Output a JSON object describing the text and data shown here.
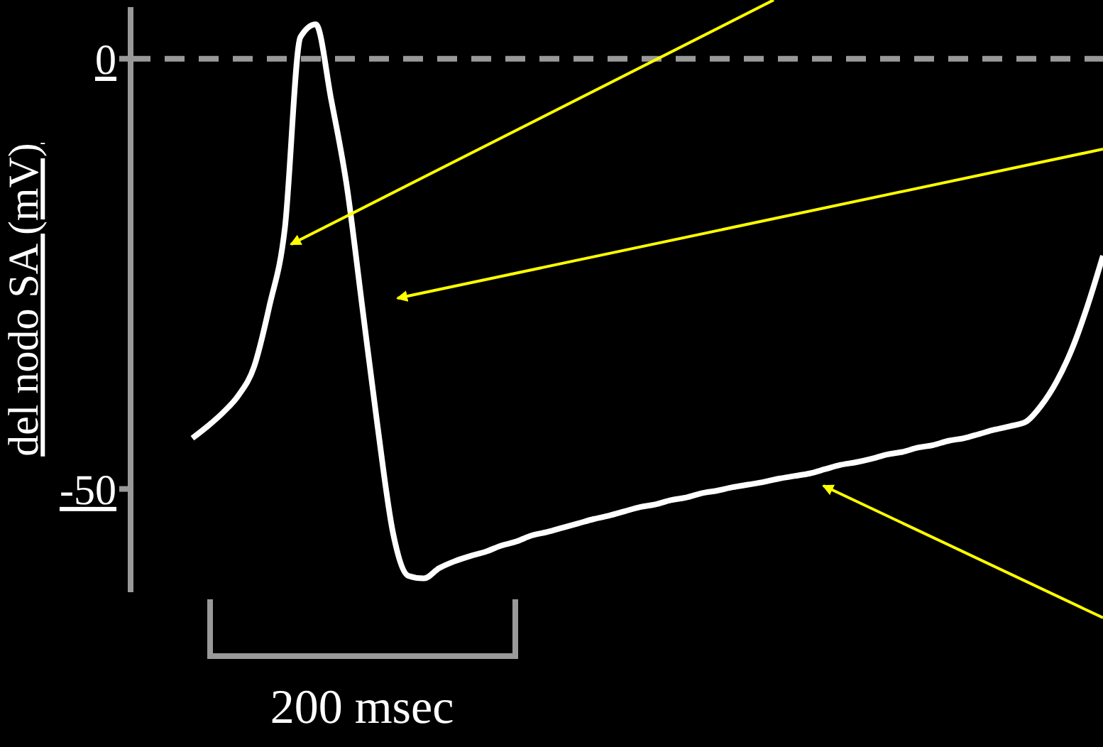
{
  "chart_data": {
    "type": "line",
    "ylabel": "del nodo SA (mV)",
    "categories": [
      null,
      null,
      null,
      null,
      null,
      null,
      null,
      null,
      null,
      null,
      null,
      null,
      null,
      null,
      null,
      null,
      null,
      null,
      null,
      null,
      null,
      null,
      null,
      null,
      null,
      null,
      null,
      null,
      null,
      null,
      null,
      null,
      null,
      null,
      null,
      null,
      null,
      null,
      null,
      null,
      null,
      null,
      null,
      null,
      null,
      null,
      null,
      null,
      null,
      null,
      null,
      null,
      null,
      null,
      null,
      null,
      null,
      null,
      null,
      null,
      null,
      null,
      null,
      null
    ],
    "series": [
      {
        "color": "#ffffff",
        "values": [
          null,
          null,
          null,
          null,
          -44.1,
          -42.7,
          -41.1,
          -39.1,
          -35.8,
          -28.7,
          -19.6,
          2.5,
          4.0,
          -4.8,
          -14.7,
          -28.7,
          -42.7,
          -55.1,
          -60.1,
          -60.4,
          -59.2,
          -58.4,
          -57.8,
          -57.3,
          -56.6,
          -56.1,
          -55.4,
          -55.0,
          -54.5,
          -54.0,
          -53.5,
          -53.1,
          -52.6,
          -52.1,
          -51.8,
          -51.3,
          -51.0,
          -50.5,
          -50.2,
          -49.8,
          -49.5,
          -49.2,
          -48.8,
          -48.5,
          -48.2,
          -47.7,
          -47.2,
          -46.9,
          -46.5,
          -46.0,
          -45.7,
          -45.2,
          -44.9,
          -44.4,
          -44.1,
          -43.6,
          -43.1,
          -42.7,
          -42.2,
          -40.3,
          -37.5,
          -33.7,
          -28.7,
          -22.9
        ]
      }
    ],
    "ylim": [
      -62,
      6
    ],
    "yticks": [
      0,
      -50
    ],
    "tick_labels": "y",
    "marker": "none",
    "line_style": "solid",
    "ref_lines": [
      {
        "axis": "y",
        "value": 0,
        "color": "#999999",
        "line_style": "dashed"
      }
    ],
    "annotations": [
      "200 msec"
    ]
  }
}
